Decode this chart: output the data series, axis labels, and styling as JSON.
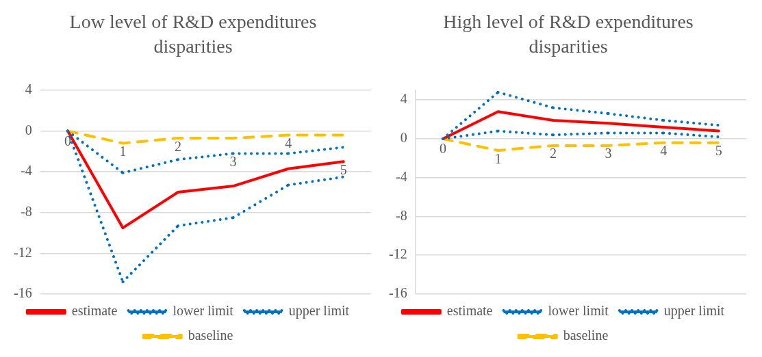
{
  "chart_data": [
    {
      "type": "line",
      "title": "Low level of R&D expenditures disparities",
      "categories": [
        "0",
        "1",
        "2",
        "3",
        "4",
        "5"
      ],
      "ylim": [
        -16,
        4
      ],
      "yticks": [
        -16,
        -12,
        -8,
        -4,
        0,
        4
      ],
      "grid": "y",
      "legend": "bottom",
      "marker": "none",
      "series": [
        {
          "name": "estimate",
          "color": "#ff0000",
          "line_style": "solid",
          "values": [
            0,
            -9.5,
            -6.0,
            -5.4,
            -3.7,
            -3.0
          ]
        },
        {
          "name": "lower limit",
          "color": "#0070c0",
          "line_style": "dotted",
          "values": [
            0,
            -14.8,
            -9.3,
            -8.5,
            -5.3,
            -4.5
          ]
        },
        {
          "name": "upper limit",
          "color": "#0070c0",
          "line_style": "dotted",
          "values": [
            0,
            -4.1,
            -2.8,
            -2.2,
            -2.2,
            -1.6
          ]
        },
        {
          "name": "baseline",
          "color": "#ffc000",
          "line_style": "dashed",
          "values": [
            0,
            -1.2,
            -0.7,
            -0.7,
            -0.4,
            -0.4
          ]
        }
      ]
    },
    {
      "type": "line",
      "title": "High level of R&D expenditures disparities",
      "categories": [
        "0",
        "1",
        "2",
        "3",
        "4",
        "5"
      ],
      "ylim": [
        -16,
        5
      ],
      "yticks": [
        -16,
        -12,
        -8,
        -4,
        0,
        4
      ],
      "grid": "y",
      "legend": "bottom",
      "marker": "none",
      "series": [
        {
          "name": "estimate",
          "color": "#ff0000",
          "line_style": "solid",
          "values": [
            0,
            2.8,
            1.9,
            1.6,
            1.2,
            0.8
          ]
        },
        {
          "name": "lower limit",
          "color": "#0070c0",
          "line_style": "dotted",
          "values": [
            0,
            0.8,
            0.4,
            0.6,
            0.6,
            0.2
          ]
        },
        {
          "name": "upper limit",
          "color": "#0070c0",
          "line_style": "dotted",
          "values": [
            0,
            4.8,
            3.2,
            2.6,
            1.9,
            1.4
          ]
        },
        {
          "name": "baseline",
          "color": "#ffc000",
          "line_style": "dashed",
          "values": [
            0,
            -1.2,
            -0.7,
            -0.7,
            -0.4,
            -0.4
          ]
        }
      ]
    }
  ]
}
